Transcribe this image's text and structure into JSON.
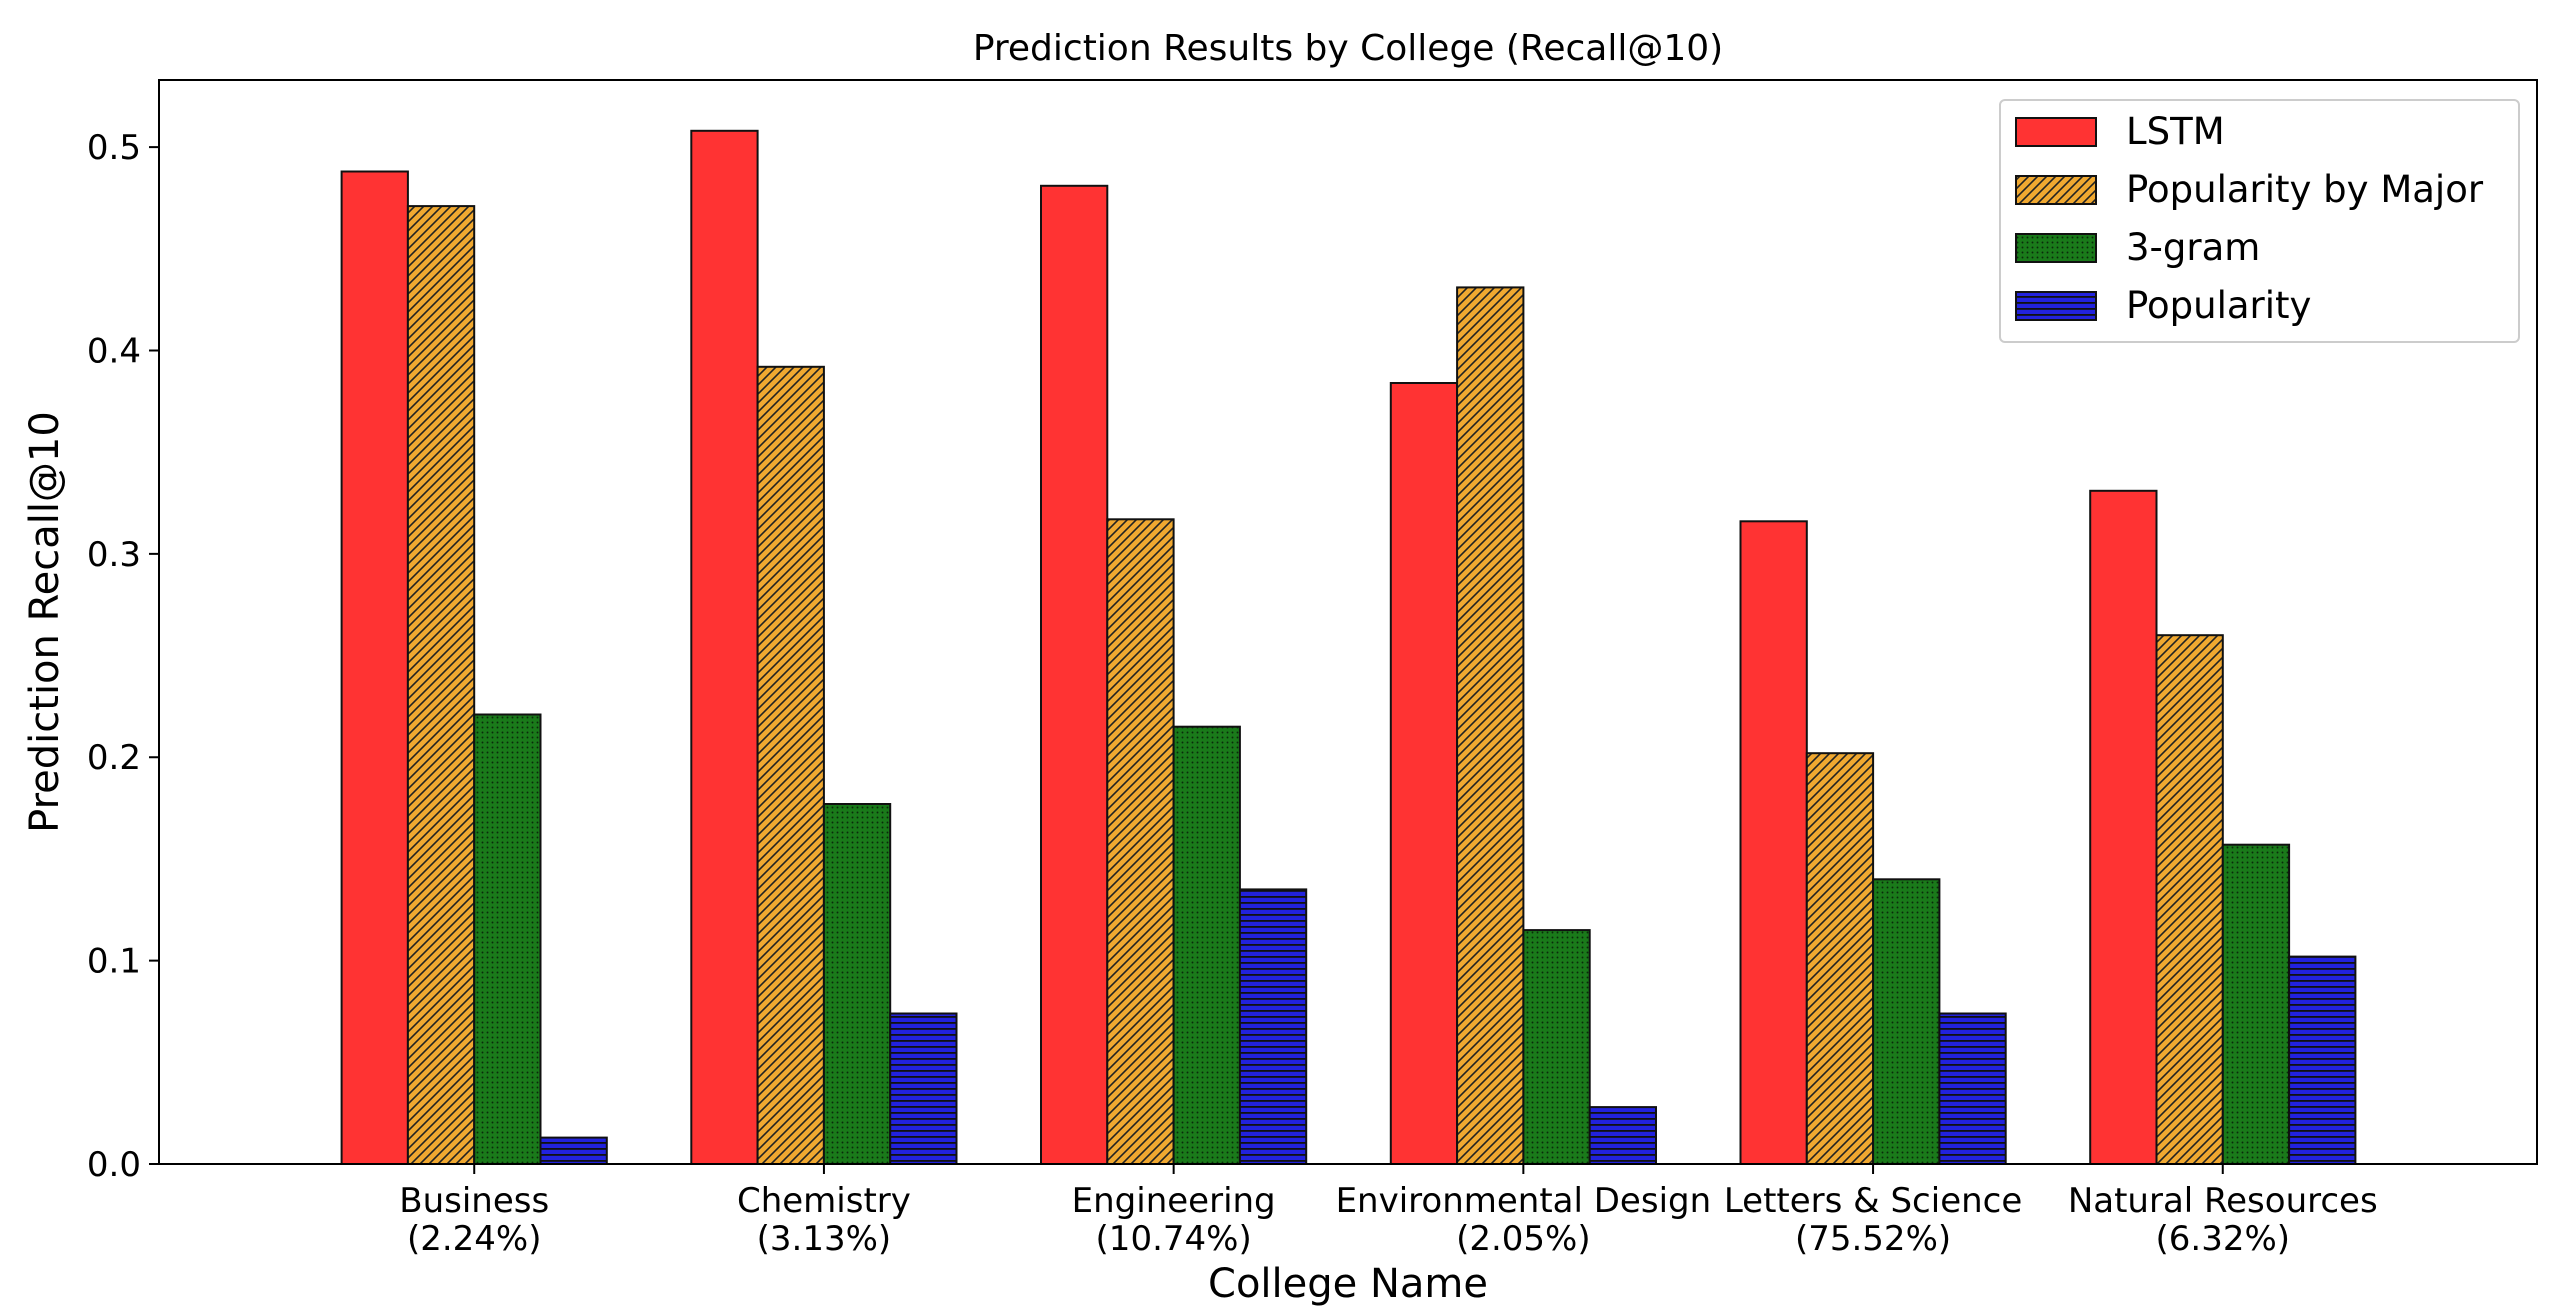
{
  "chart_data": {
    "type": "bar",
    "title": "Prediction Results by College (Recall@10)",
    "xlabel": "College Name",
    "ylabel": "Prediction Recall@10",
    "ylim": [
      0,
      0.533
    ],
    "yticks": [
      0.0,
      0.1,
      0.2,
      0.3,
      0.4,
      0.5
    ],
    "ytick_labels": [
      "0.0",
      "0.1",
      "0.2",
      "0.3",
      "0.4",
      "0.5"
    ],
    "grid": false,
    "legend_position": "top-right",
    "categories": [
      {
        "name": "Business",
        "share": "(2.24%)"
      },
      {
        "name": "Chemistry",
        "share": "(3.13%)"
      },
      {
        "name": "Engineering",
        "share": "(10.74%)"
      },
      {
        "name": "Environmental Design",
        "share": "(2.05%)"
      },
      {
        "name": "Letters & Science",
        "share": "(75.52%)"
      },
      {
        "name": "Natural Resources",
        "share": "(6.32%)"
      }
    ],
    "series": [
      {
        "name": "LSTM",
        "color": "#ff3333",
        "pattern": "solid",
        "values": [
          0.488,
          0.508,
          0.481,
          0.384,
          0.316,
          0.331
        ]
      },
      {
        "name": "Popularity by Major",
        "color": "#f0a830",
        "pattern": "diagonal-hatch",
        "values": [
          0.471,
          0.392,
          0.317,
          0.431,
          0.202,
          0.26
        ]
      },
      {
        "name": "3-gram",
        "color": "#1a7a1a",
        "pattern": "dots",
        "values": [
          0.221,
          0.177,
          0.215,
          0.115,
          0.14,
          0.157
        ]
      },
      {
        "name": "Popularity",
        "color": "#2222dd",
        "pattern": "horizontal-lines",
        "values": [
          0.013,
          0.074,
          0.135,
          0.028,
          0.074,
          0.102
        ]
      }
    ]
  }
}
